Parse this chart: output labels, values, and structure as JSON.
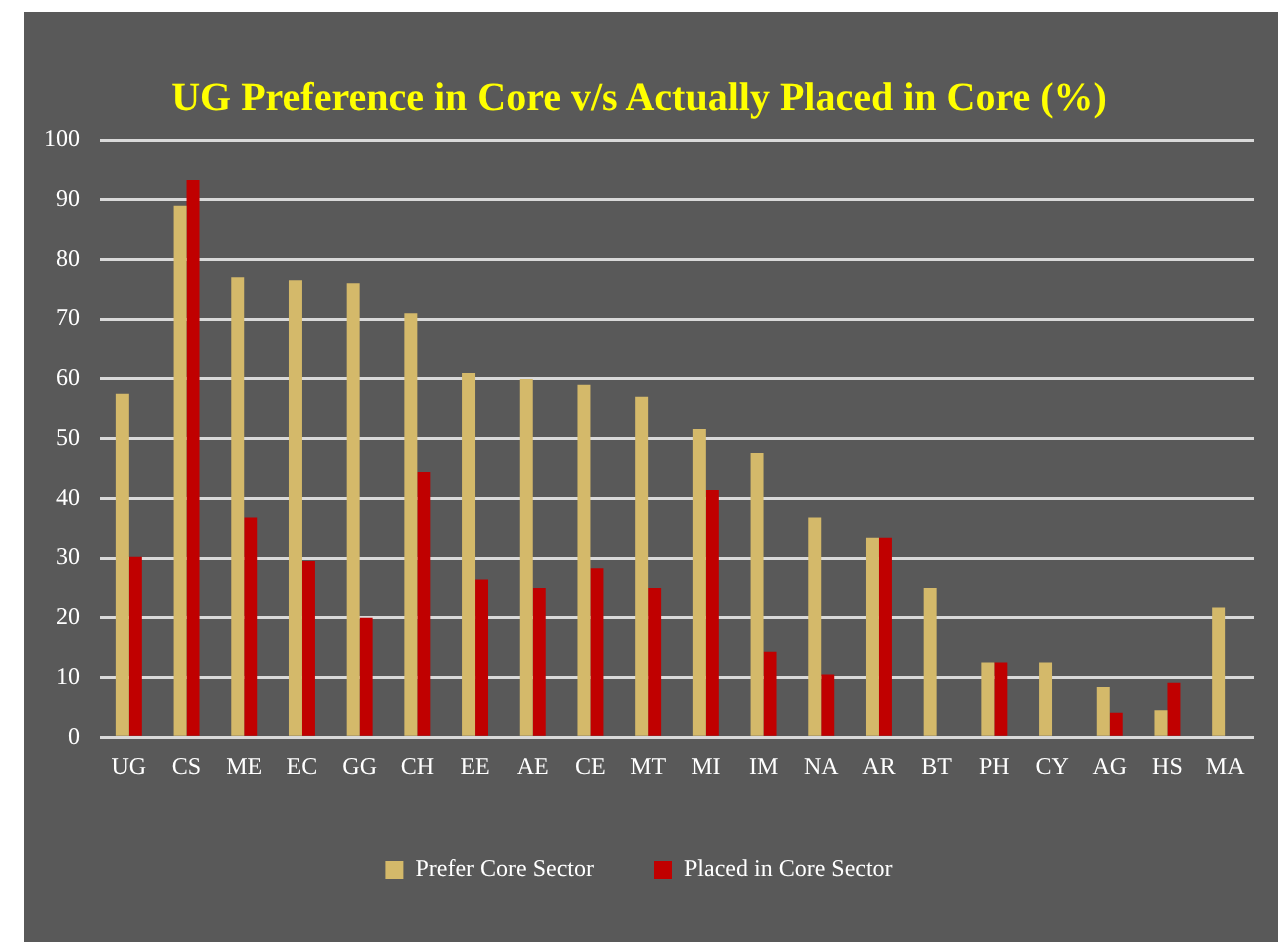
{
  "chart_data": {
    "type": "bar",
    "title": "UG Preference in Core v/s Actually Placed in Core (%)",
    "categories": [
      "UG",
      "CS",
      "ME",
      "EC",
      "GG",
      "CH",
      "EE",
      "AE",
      "CE",
      "MT",
      "MI",
      "IM",
      "NA",
      "AR",
      "BT",
      "PH",
      "CY",
      "AG",
      "HS",
      "MA"
    ],
    "series": [
      {
        "name": "Prefer Core Sector",
        "color": "#d4b96a",
        "values": [
          57.5,
          89,
          77,
          76.5,
          76,
          71,
          61,
          60,
          59,
          57,
          51.6,
          47.6,
          36.8,
          33.4,
          25,
          12.5,
          12.5,
          8.4,
          4.5,
          21.7
        ]
      },
      {
        "name": "Placed in Core Sector",
        "color": "#c00000",
        "values": [
          30.2,
          93.3,
          36.8,
          29.5,
          20,
          44.4,
          26.4,
          25,
          28.3,
          25,
          41.4,
          14.3,
          10.5,
          33.4,
          0,
          12.5,
          0,
          4.1,
          9.1,
          0
        ]
      }
    ],
    "ylim": [
      0,
      100
    ],
    "yticks": [
      0,
      10,
      20,
      30,
      40,
      50,
      60,
      70,
      80,
      90,
      100
    ],
    "grid": "y",
    "legend": "bottom"
  }
}
